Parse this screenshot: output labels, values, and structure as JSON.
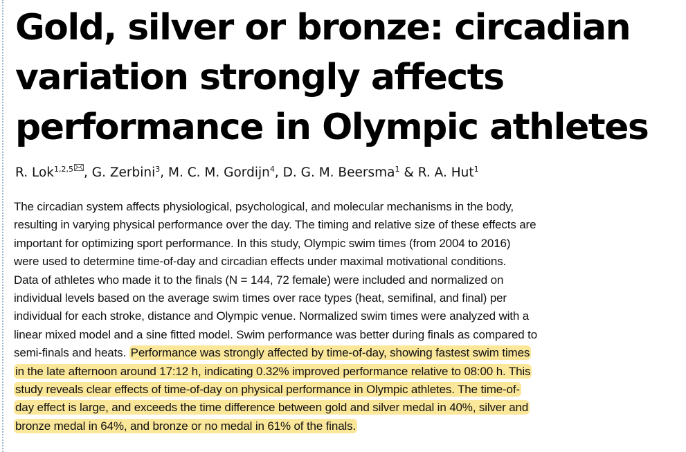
{
  "title": {
    "lines": [
      "Gold, silver or bronze: circadian",
      "variation strongly affects",
      "performance in Olympic athletes"
    ]
  },
  "authors": [
    {
      "name": "R. Lok",
      "sup": "1,2,5",
      "corresponding": true,
      "sep": ", "
    },
    {
      "name": "G. Zerbini",
      "sup": "3",
      "sep": ", "
    },
    {
      "name": "M. C. M. Gordijn",
      "sup": "4",
      "sep": ", "
    },
    {
      "name": "D. G. M. Beersma",
      "sup": "1",
      "sep": " & "
    },
    {
      "name": "R. A. Hut",
      "sup": "1",
      "sep": ""
    }
  ],
  "abstract": {
    "lines": [
      {
        "plain": "The circadian system affects physiological, psychological, and molecular mechanisms in the body,",
        "highlight": ""
      },
      {
        "plain": "resulting in varying physical performance over the day. The timing and relative size of these effects are",
        "highlight": ""
      },
      {
        "plain": "important for optimizing sport performance. In this study, Olympic swim times (from 2004 to 2016)",
        "highlight": ""
      },
      {
        "plain": "were used to determine time-of-day and circadian effects under maximal motivational conditions.",
        "highlight": ""
      },
      {
        "plain": "Data of athletes who made it to the finals (N = 144, 72 female) were included and normalized on",
        "highlight": ""
      },
      {
        "plain": "individual levels based on the average swim times over race types (heat, semifinal, and final) per",
        "highlight": ""
      },
      {
        "plain": "individual for each stroke, distance and Olympic venue. Normalized swim times were analyzed with a",
        "highlight": ""
      },
      {
        "plain": "linear mixed model and a sine fitted model. Swim performance was better during finals as compared to",
        "highlight": ""
      },
      {
        "plain": "semi-finals and heats. ",
        "highlight": "Performance was strongly affected by time-of-day, showing fastest swim times"
      },
      {
        "plain": "",
        "highlight": "in the late afternoon around 17:12 h, indicating 0.32% improved performance relative to 08:00 h. This"
      },
      {
        "plain": "",
        "highlight": "study reveals clear effects of time-of-day on physical performance in Olympic athletes. The time-of-"
      },
      {
        "plain": "",
        "highlight": "day effect is large, and exceeds the time difference between gold and silver medal in 40%, silver and"
      },
      {
        "plain": "",
        "highlight": "bronze medal in 64%, and bronze or no medal in 61% of the finals."
      }
    ]
  },
  "colors": {
    "highlight": "#fbe79a",
    "text": "#111111",
    "left_rule": "#9bb3c9"
  },
  "icons": {
    "corresponding_author": "envelope-icon"
  }
}
